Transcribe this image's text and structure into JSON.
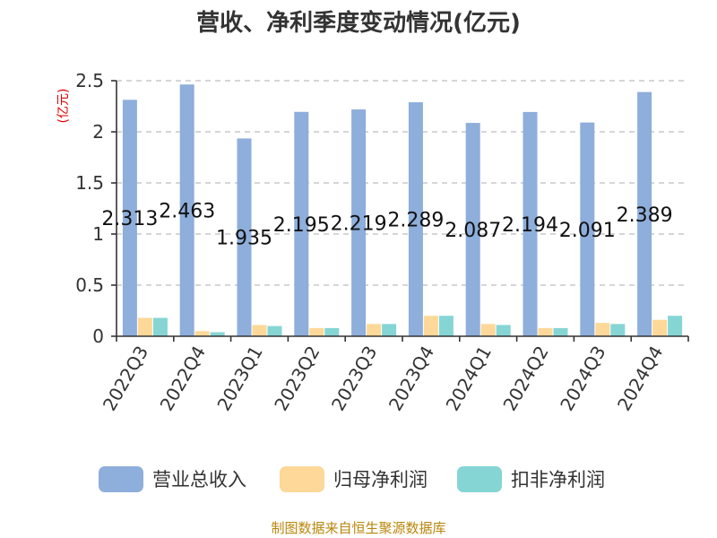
{
  "title": "营收、净利季度变动情况(亿元)",
  "source": "制图数据来自恒生聚源数据库",
  "chart_data": {
    "type": "bar",
    "title": "营收、净利季度变动情况(亿元)",
    "unit_label": "(亿元)",
    "ylim": [
      0,
      2.5
    ],
    "yticks": [
      "0",
      "0.5",
      "1",
      "1.5",
      "2",
      "2.5"
    ],
    "grid": true,
    "legend_position": "bottom",
    "categories": [
      "2022Q3",
      "2022Q4",
      "2023Q1",
      "2023Q2",
      "2023Q3",
      "2023Q4",
      "2024Q1",
      "2024Q2",
      "2024Q3",
      "2024Q4"
    ],
    "series": [
      {
        "name": "营业总收入",
        "color": "#8eaedb",
        "values": [
          2.313,
          2.463,
          1.935,
          2.195,
          2.219,
          2.289,
          2.087,
          2.194,
          2.091,
          2.389
        ]
      },
      {
        "name": "归母净利润",
        "color": "#fdd898",
        "values": [
          0.18,
          0.05,
          0.11,
          0.08,
          0.12,
          0.2,
          0.12,
          0.08,
          0.13,
          0.16
        ]
      },
      {
        "name": "扣非净利润",
        "color": "#86d5d5",
        "values": [
          0.18,
          0.04,
          0.1,
          0.08,
          0.12,
          0.2,
          0.11,
          0.08,
          0.12,
          0.2
        ]
      }
    ],
    "data_labels": [
      "2.313",
      "2.463",
      "1.935",
      "2.195",
      "2.219",
      "2.289",
      "2.087",
      "2.194",
      "2.091",
      "2.389"
    ]
  }
}
